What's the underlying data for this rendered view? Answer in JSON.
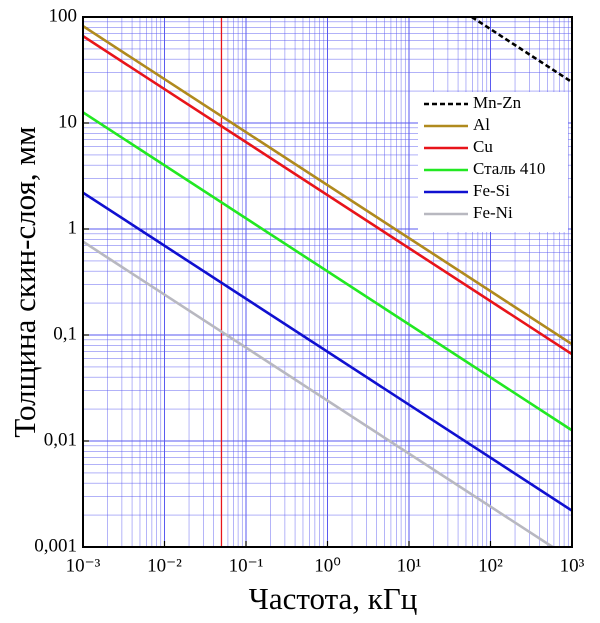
{
  "chart_data": {
    "type": "line",
    "xlabel": "Частота, кГц",
    "ylabel": "Толщина скин-слоя, мм",
    "xscale": "log",
    "yscale": "log",
    "xlim": [
      0.001,
      1000
    ],
    "ylim": [
      0.001,
      100
    ],
    "xticks": [
      {
        "value": 0.001,
        "label": "10⁻³"
      },
      {
        "value": 0.01,
        "label": "10⁻²"
      },
      {
        "value": 0.1,
        "label": "10⁻¹"
      },
      {
        "value": 1,
        "label": "10⁰"
      },
      {
        "value": 10,
        "label": "10¹"
      },
      {
        "value": 100,
        "label": "10²"
      },
      {
        "value": 1000,
        "label": "10³"
      }
    ],
    "yticks": [
      {
        "value": 0.001,
        "label": "0,001"
      },
      {
        "value": 0.01,
        "label": "0,01"
      },
      {
        "value": 0.1,
        "label": "0,1"
      },
      1,
      10,
      100
    ],
    "grid": true,
    "grid_color": "#5a5af0",
    "legend": "upper right",
    "vline": {
      "x": 0.05,
      "color": "#e8141a"
    },
    "series": [
      {
        "name": "Mn-Zn",
        "color": "#000000",
        "dashed": true,
        "x": [
          59,
          1000
        ],
        "values": [
          100,
          24.3
        ]
      },
      {
        "name": "Al",
        "color": "#b08a1e",
        "x": [
          0.001,
          1000
        ],
        "values": [
          82,
          0.082
        ]
      },
      {
        "name": "Cu",
        "color": "#e8141a",
        "x": [
          0.001,
          1000
        ],
        "values": [
          66,
          0.066
        ]
      },
      {
        "name": "Сталь 410",
        "color": "#22e822",
        "x": [
          0.001,
          1000
        ],
        "values": [
          12.6,
          0.0126
        ]
      },
      {
        "name": "Fe-Si",
        "color": "#1010d0",
        "x": [
          0.001,
          1000
        ],
        "values": [
          2.2,
          0.0022
        ]
      },
      {
        "name": "Fe-Ni",
        "color": "#b8b8c0",
        "x": [
          0.001,
          578
        ],
        "values": [
          0.76,
          0.001
        ]
      }
    ]
  }
}
